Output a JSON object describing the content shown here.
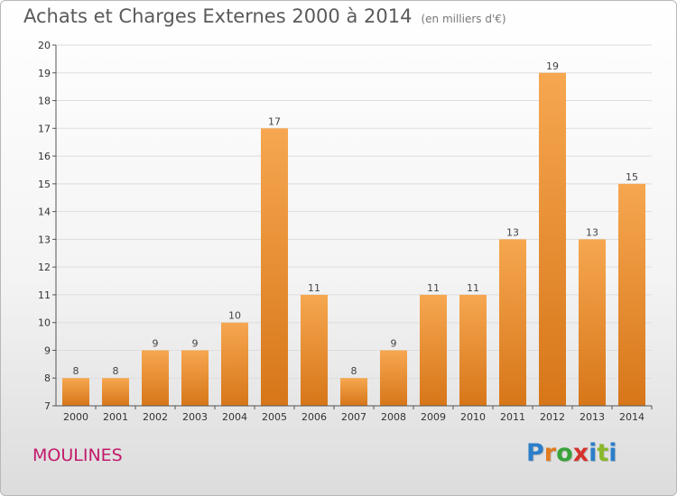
{
  "header": {
    "title": "Achats et Charges Externes 2000 à 2014",
    "subtitle": "(en milliers d'€)"
  },
  "footer": {
    "city": "MOULINES",
    "logo_text": "Proxiti",
    "logo_colors": [
      "#2b7ec9",
      "#e07b1f",
      "#3aa23a",
      "#d6322c",
      "#2b7ec9",
      "#8ab82a",
      "#2b7ec9"
    ]
  },
  "colors": {
    "bar_top": "#f6a750",
    "bar_bottom": "#d77619",
    "grid": "#dddddd",
    "axis": "#555555"
  },
  "chart_data": {
    "type": "bar",
    "categories": [
      "2000",
      "2001",
      "2002",
      "2003",
      "2004",
      "2005",
      "2006",
      "2007",
      "2008",
      "2009",
      "2010",
      "2011",
      "2012",
      "2013",
      "2014"
    ],
    "values": [
      8,
      8,
      9,
      9,
      10,
      17,
      11,
      8,
      9,
      11,
      11,
      13,
      19,
      13,
      15
    ],
    "title": "Achats et Charges Externes 2000 à 2014",
    "subtitle": "(en milliers d'€)",
    "ylim": [
      7,
      20
    ],
    "yticks": [
      7,
      8,
      9,
      10,
      11,
      12,
      13,
      14,
      15,
      16,
      17,
      18,
      19,
      20
    ],
    "grid": true,
    "legend": "none"
  }
}
